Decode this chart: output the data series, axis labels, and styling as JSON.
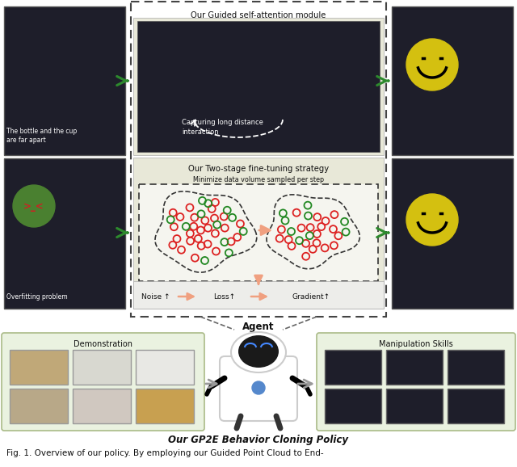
{
  "title": "Our GP2E Behavior Cloning Policy",
  "caption": "Fig. 1. Overview of our policy. By employing our Guided Point Cloud to End-",
  "bg_color": "#ffffff",
  "fig_width": 6.4,
  "fig_height": 5.78,
  "dpi": 100,
  "top_box_label": "Our Guided self-attention module",
  "top_box_sublabel": "Capturing long distance\ninteraction",
  "mid_box_label": "Our Two-stage fine-tuning strategy",
  "mid_box_sublabel": "Minimize data volume sampled per step",
  "bottom_label1": "Noise ↑",
  "bottom_label2": "Loss↑",
  "bottom_label3": "Gradient↑",
  "agent_label": "Agent",
  "demo_label": "Demonstration",
  "skills_label": "Manipulation Skills",
  "left_top_caption": "The bottle and the cup\nare far apart",
  "left_bot_caption": "Overfitting problem",
  "arrow_color": "#2d8a2d",
  "salmon_arrow": "#f0a080",
  "dashed_box_color": "#333333",
  "light_bg": "#e8e8d8",
  "green_bg": "#eaf2e0",
  "smiley_color": "#d4c010",
  "dot_red": "#dd2222",
  "dot_green": "#228822",
  "img_dark": "#1e1e2a",
  "img_mid": "#2a2a3a"
}
